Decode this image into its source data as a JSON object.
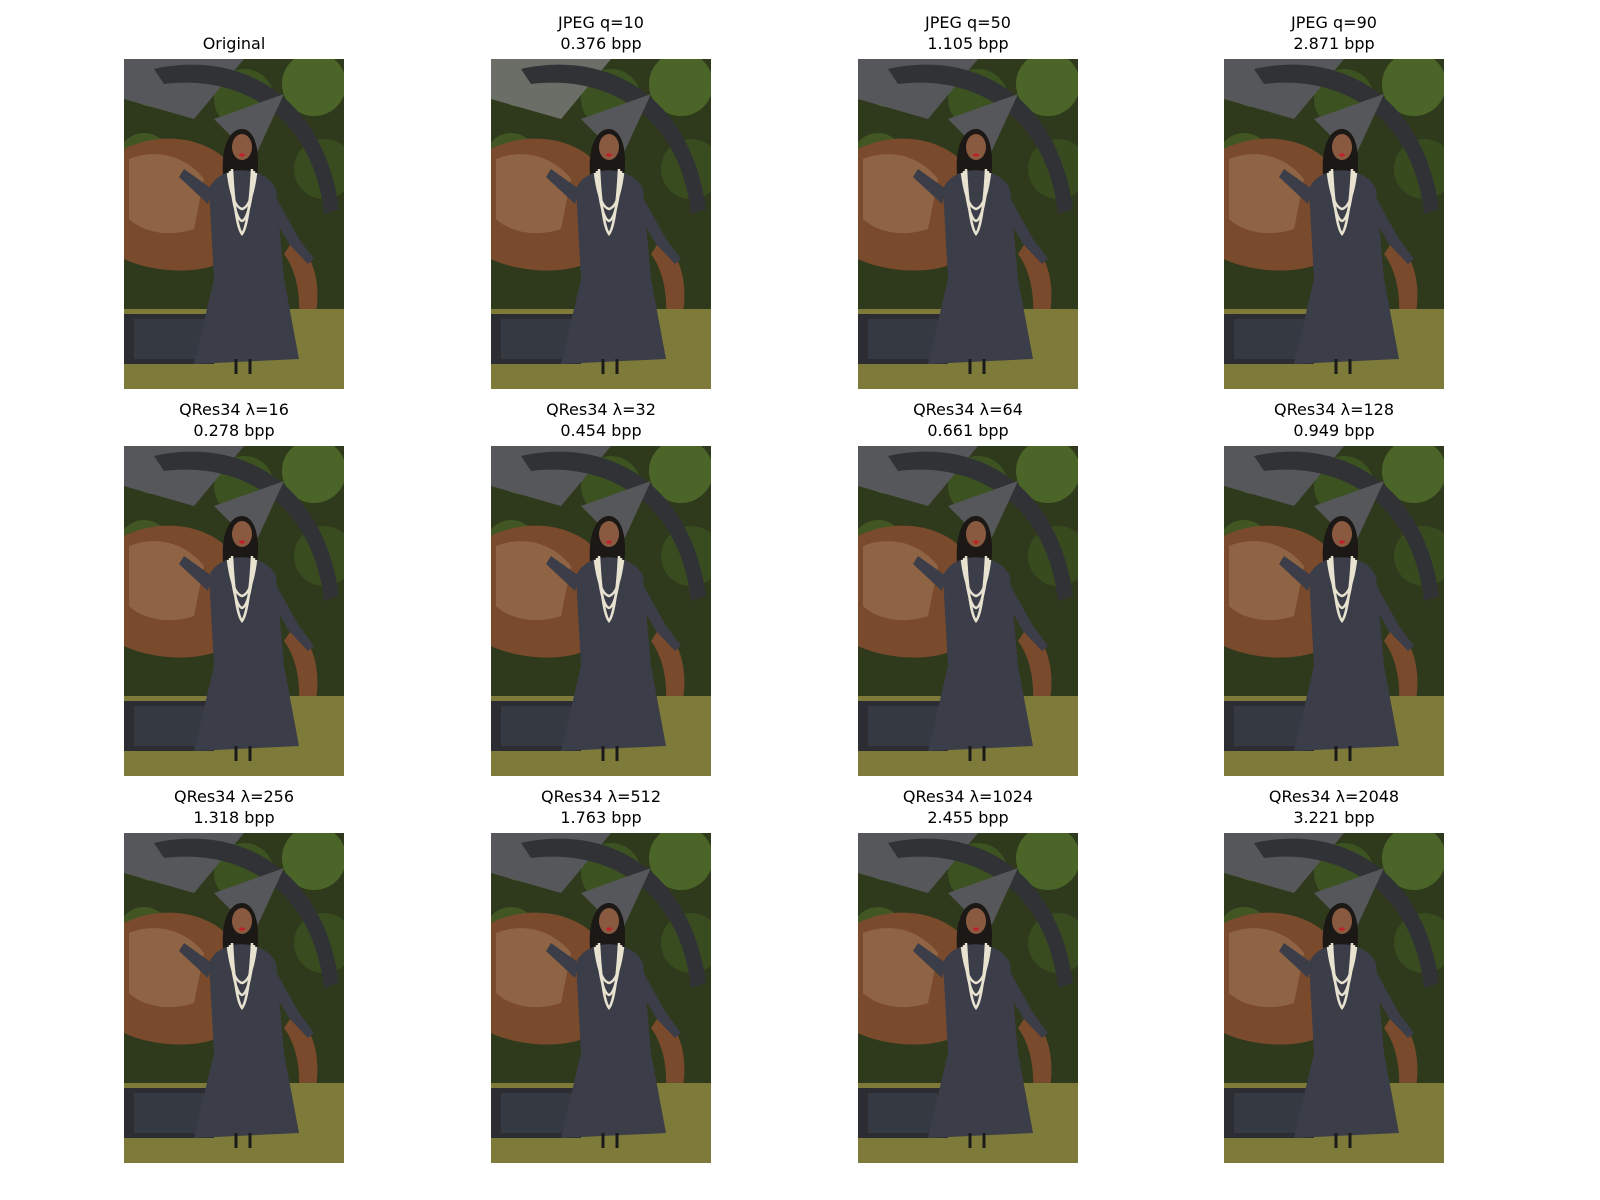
{
  "figure": {
    "panels": [
      {
        "title": "Original",
        "subtitle": "",
        "bpp_value": null,
        "method": "original"
      },
      {
        "title": "JPEG q=10",
        "subtitle": "0.376 bpp",
        "bpp_value": 0.376,
        "method": "jpeg",
        "quality": 10
      },
      {
        "title": "JPEG q=50",
        "subtitle": "1.105 bpp",
        "bpp_value": 1.105,
        "method": "jpeg",
        "quality": 50
      },
      {
        "title": "JPEG q=90",
        "subtitle": "2.871 bpp",
        "bpp_value": 2.871,
        "method": "jpeg",
        "quality": 90
      },
      {
        "title": "QRes34 λ=16",
        "subtitle": "0.278 bpp",
        "bpp_value": 0.278,
        "method": "qres34",
        "lambda": 16
      },
      {
        "title": "QRes34 λ=32",
        "subtitle": "0.454 bpp",
        "bpp_value": 0.454,
        "method": "qres34",
        "lambda": 32
      },
      {
        "title": "QRes34 λ=64",
        "subtitle": "0.661 bpp",
        "bpp_value": 0.661,
        "method": "qres34",
        "lambda": 64
      },
      {
        "title": "QRes34 λ=128",
        "subtitle": "0.949 bpp",
        "bpp_value": 0.949,
        "method": "qres34",
        "lambda": 128
      },
      {
        "title": "QRes34 λ=256",
        "subtitle": "1.318 bpp",
        "bpp_value": 1.318,
        "method": "qres34",
        "lambda": 256
      },
      {
        "title": "QRes34 λ=512",
        "subtitle": "1.763 bpp",
        "bpp_value": 1.763,
        "method": "qres34",
        "lambda": 512
      },
      {
        "title": "QRes34 λ=1024",
        "subtitle": "2.455 bpp",
        "bpp_value": 2.455,
        "method": "qres34",
        "lambda": 1024
      },
      {
        "title": "QRes34 λ=2048",
        "subtitle": "3.221 bpp",
        "bpp_value": 3.221,
        "method": "qres34",
        "lambda": 2048
      }
    ],
    "colors": {
      "background": "#ffffff",
      "foliage_dark": "#2f3a1c",
      "foliage_light": "#4f6a2a",
      "sculpture_gray": "#55575a",
      "sculpture_dark": "#303236",
      "rock_rust": "#7a4a2c",
      "rock_light": "#a07a5a",
      "dress": "#3b3d48",
      "skin": "#8a5a40",
      "pearls": "#e8e2d0",
      "grass": "#7d7a3a",
      "lips": "#c0202a"
    },
    "image_subject": "woman-in-dark-dress-with-pearls-before-sculpture"
  }
}
